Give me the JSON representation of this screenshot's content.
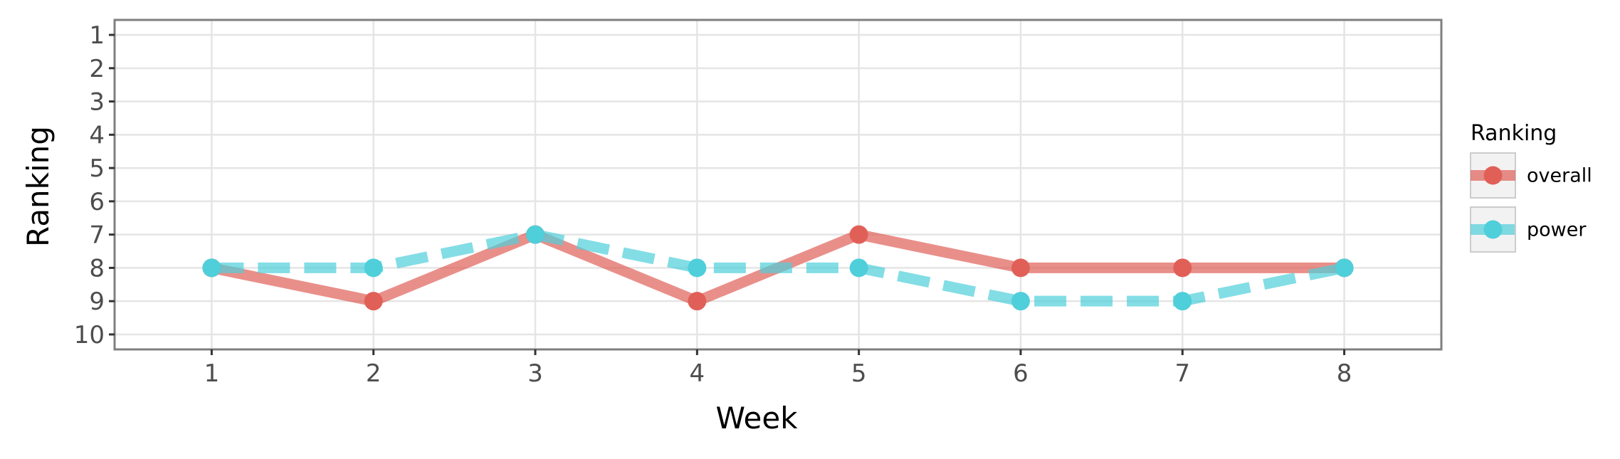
{
  "chart_data": {
    "type": "line",
    "xlabel": "Week",
    "ylabel": "Ranking",
    "x": [
      1,
      2,
      3,
      4,
      5,
      6,
      7,
      8
    ],
    "xlim": [
      0.4,
      8.6
    ],
    "ylim": [
      10.45,
      0.55
    ],
    "y_reversed": true,
    "xticks": [
      1,
      2,
      3,
      4,
      5,
      6,
      7,
      8
    ],
    "yticks": [
      1,
      2,
      3,
      4,
      5,
      6,
      7,
      8,
      9,
      10
    ],
    "grid": true,
    "legend": {
      "title": "Ranking",
      "placement": "right"
    },
    "series": [
      {
        "name": "overall",
        "values": [
          8,
          9,
          7,
          9,
          7,
          8,
          8,
          8
        ],
        "color": "#E06058",
        "line_style": "solid"
      },
      {
        "name": "power",
        "values": [
          8,
          8,
          7,
          8,
          8,
          9,
          9,
          8
        ],
        "color": "#4FCFDA",
        "line_style": "dashed"
      }
    ]
  }
}
